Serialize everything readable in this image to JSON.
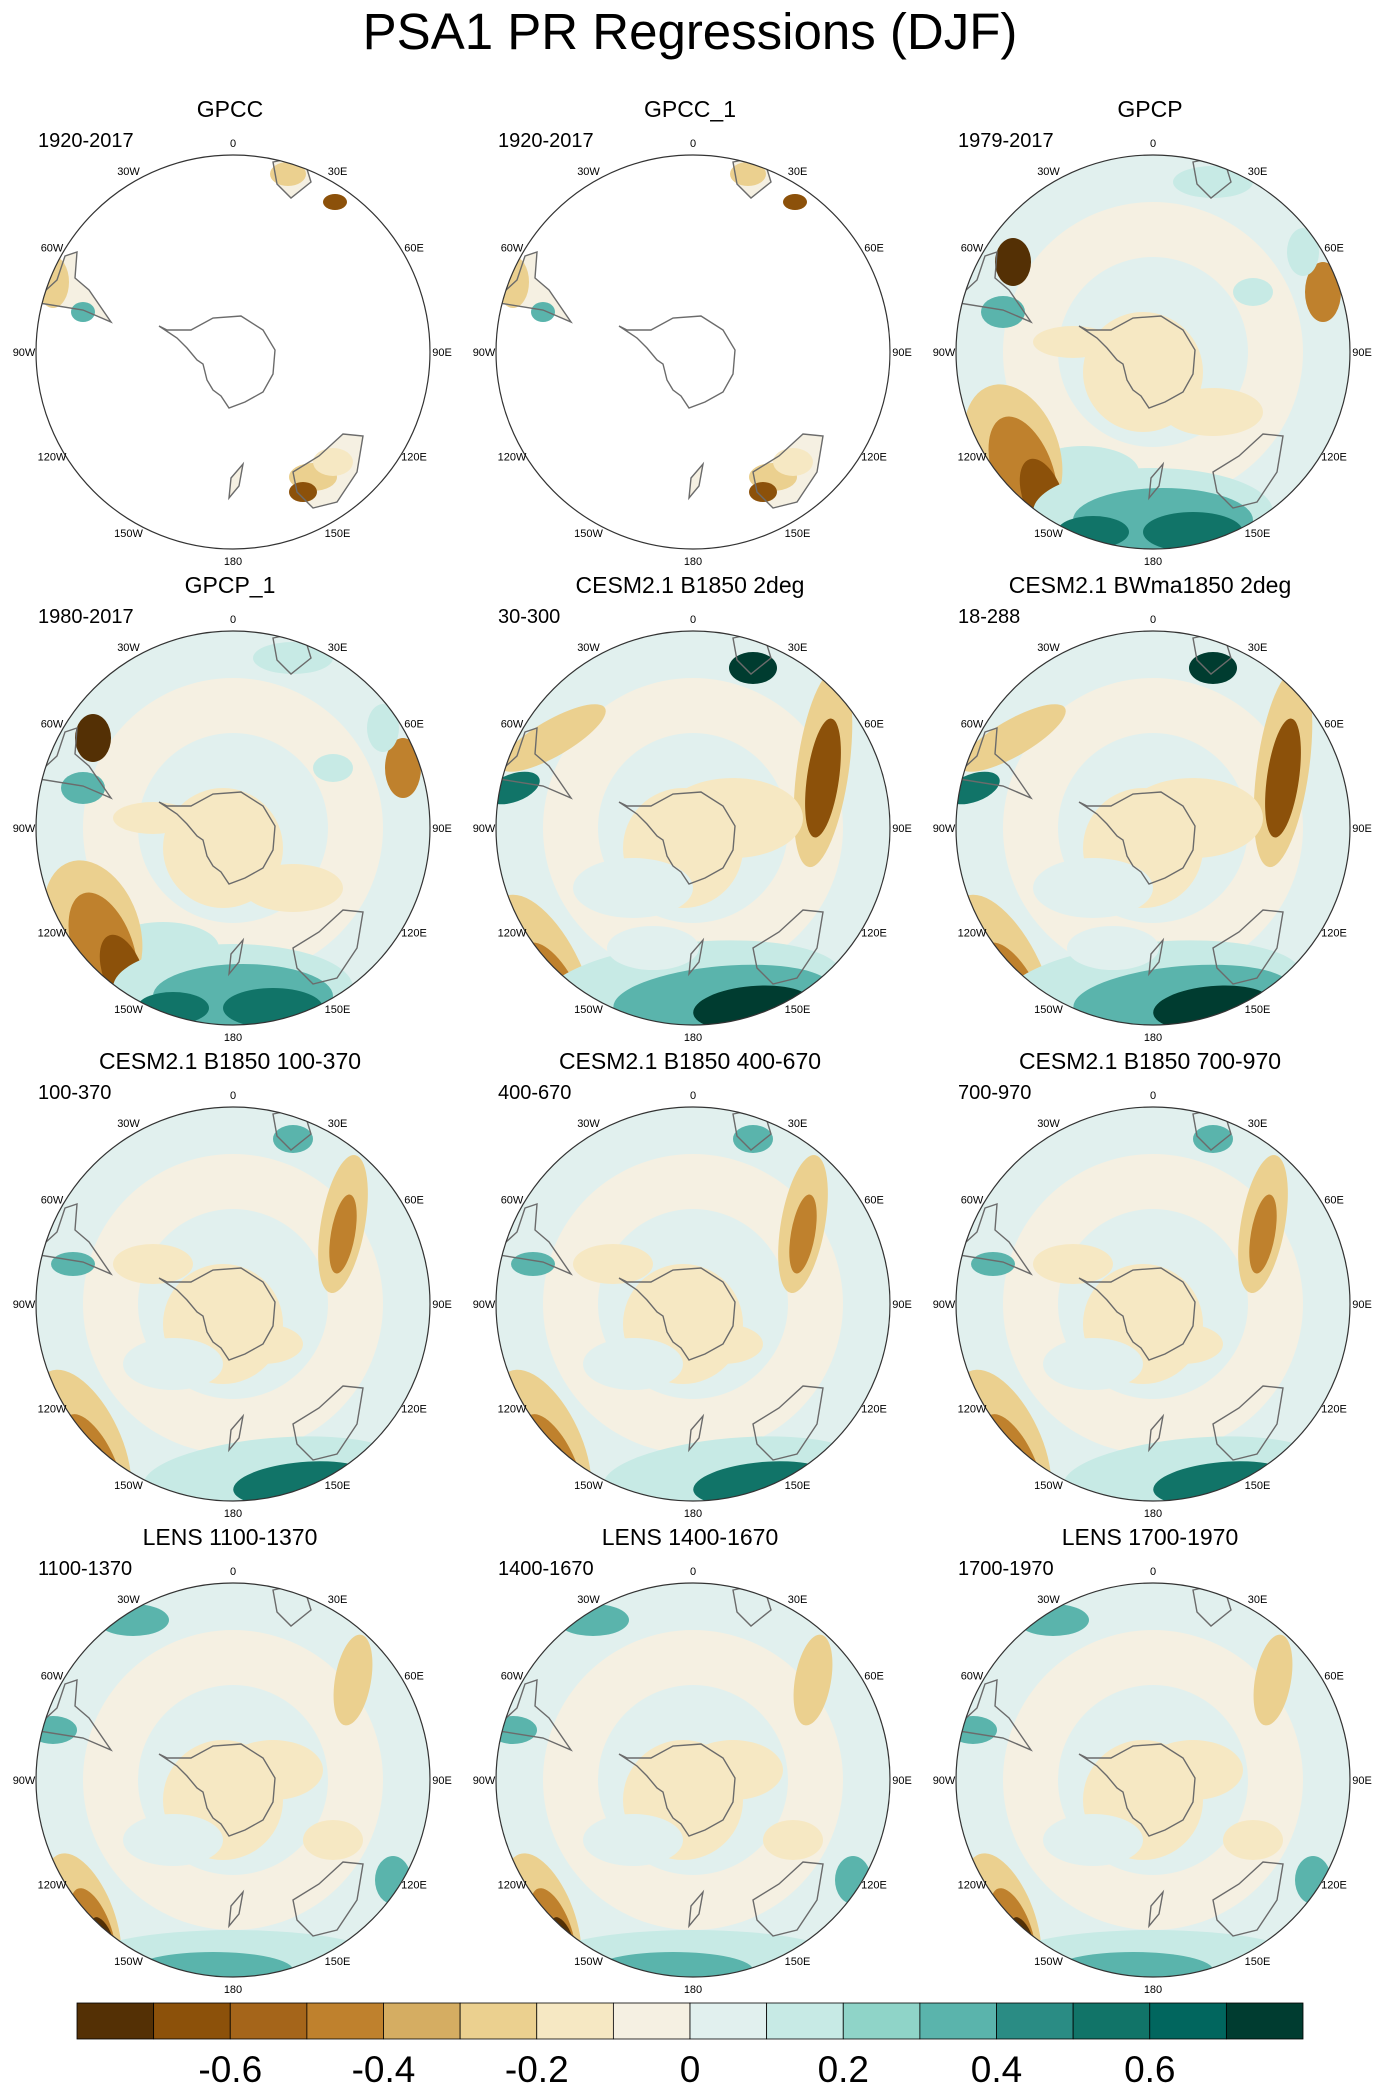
{
  "title": "PSA1 PR Regressions (DJF)",
  "panels": [
    {
      "title": "GPCC",
      "period": "1920-2017",
      "coverage": "land",
      "pattern": "obs"
    },
    {
      "title": "GPCC_1",
      "period": "1920-2017",
      "coverage": "land",
      "pattern": "obs"
    },
    {
      "title": "GPCP",
      "period": "1979-2017",
      "coverage": "global",
      "pattern": "obs"
    },
    {
      "title": "GPCP_1",
      "period": "1980-2017",
      "coverage": "global",
      "pattern": "obs"
    },
    {
      "title": "CESM2.1 B1850 2deg",
      "period": "30-300",
      "coverage": "global",
      "pattern": "strong"
    },
    {
      "title": "CESM2.1 BWma1850 2deg",
      "period": "18-288",
      "coverage": "global",
      "pattern": "strong"
    },
    {
      "title": "CESM2.1 B1850 100-370",
      "period": "100-370",
      "coverage": "global",
      "pattern": "medium"
    },
    {
      "title": "CESM2.1 B1850 400-670",
      "period": "400-670",
      "coverage": "global",
      "pattern": "medium"
    },
    {
      "title": "CESM2.1 B1850 700-970",
      "period": "700-970",
      "coverage": "global",
      "pattern": "medium"
    },
    {
      "title": "LENS 1100-1370",
      "period": "1100-1370",
      "coverage": "global",
      "pattern": "weak"
    },
    {
      "title": "LENS 1400-1670",
      "period": "1400-1670",
      "coverage": "global",
      "pattern": "weak"
    },
    {
      "title": "LENS 1700-1970",
      "period": "1700-1970",
      "coverage": "global",
      "pattern": "weak"
    }
  ],
  "longitude_labels": [
    "0",
    "30E",
    "60E",
    "90E",
    "120E",
    "150E",
    "180",
    "150W",
    "120W",
    "90W",
    "60W",
    "30W"
  ],
  "colorbar": {
    "colors": [
      "#543005",
      "#8c510a",
      "#a5651a",
      "#bf812d",
      "#d5ad62",
      "#ebd08f",
      "#f6e8c3",
      "#f5f0e2",
      "#e1f0ee",
      "#c7eae5",
      "#8fd4c8",
      "#5ab4ac",
      "#2a8c84",
      "#117468",
      "#01665e",
      "#003c30"
    ],
    "tick_labels": [
      "-0.6",
      "-0.4",
      "-0.2",
      "0",
      "0.2",
      "0.4",
      "0.6"
    ]
  }
}
